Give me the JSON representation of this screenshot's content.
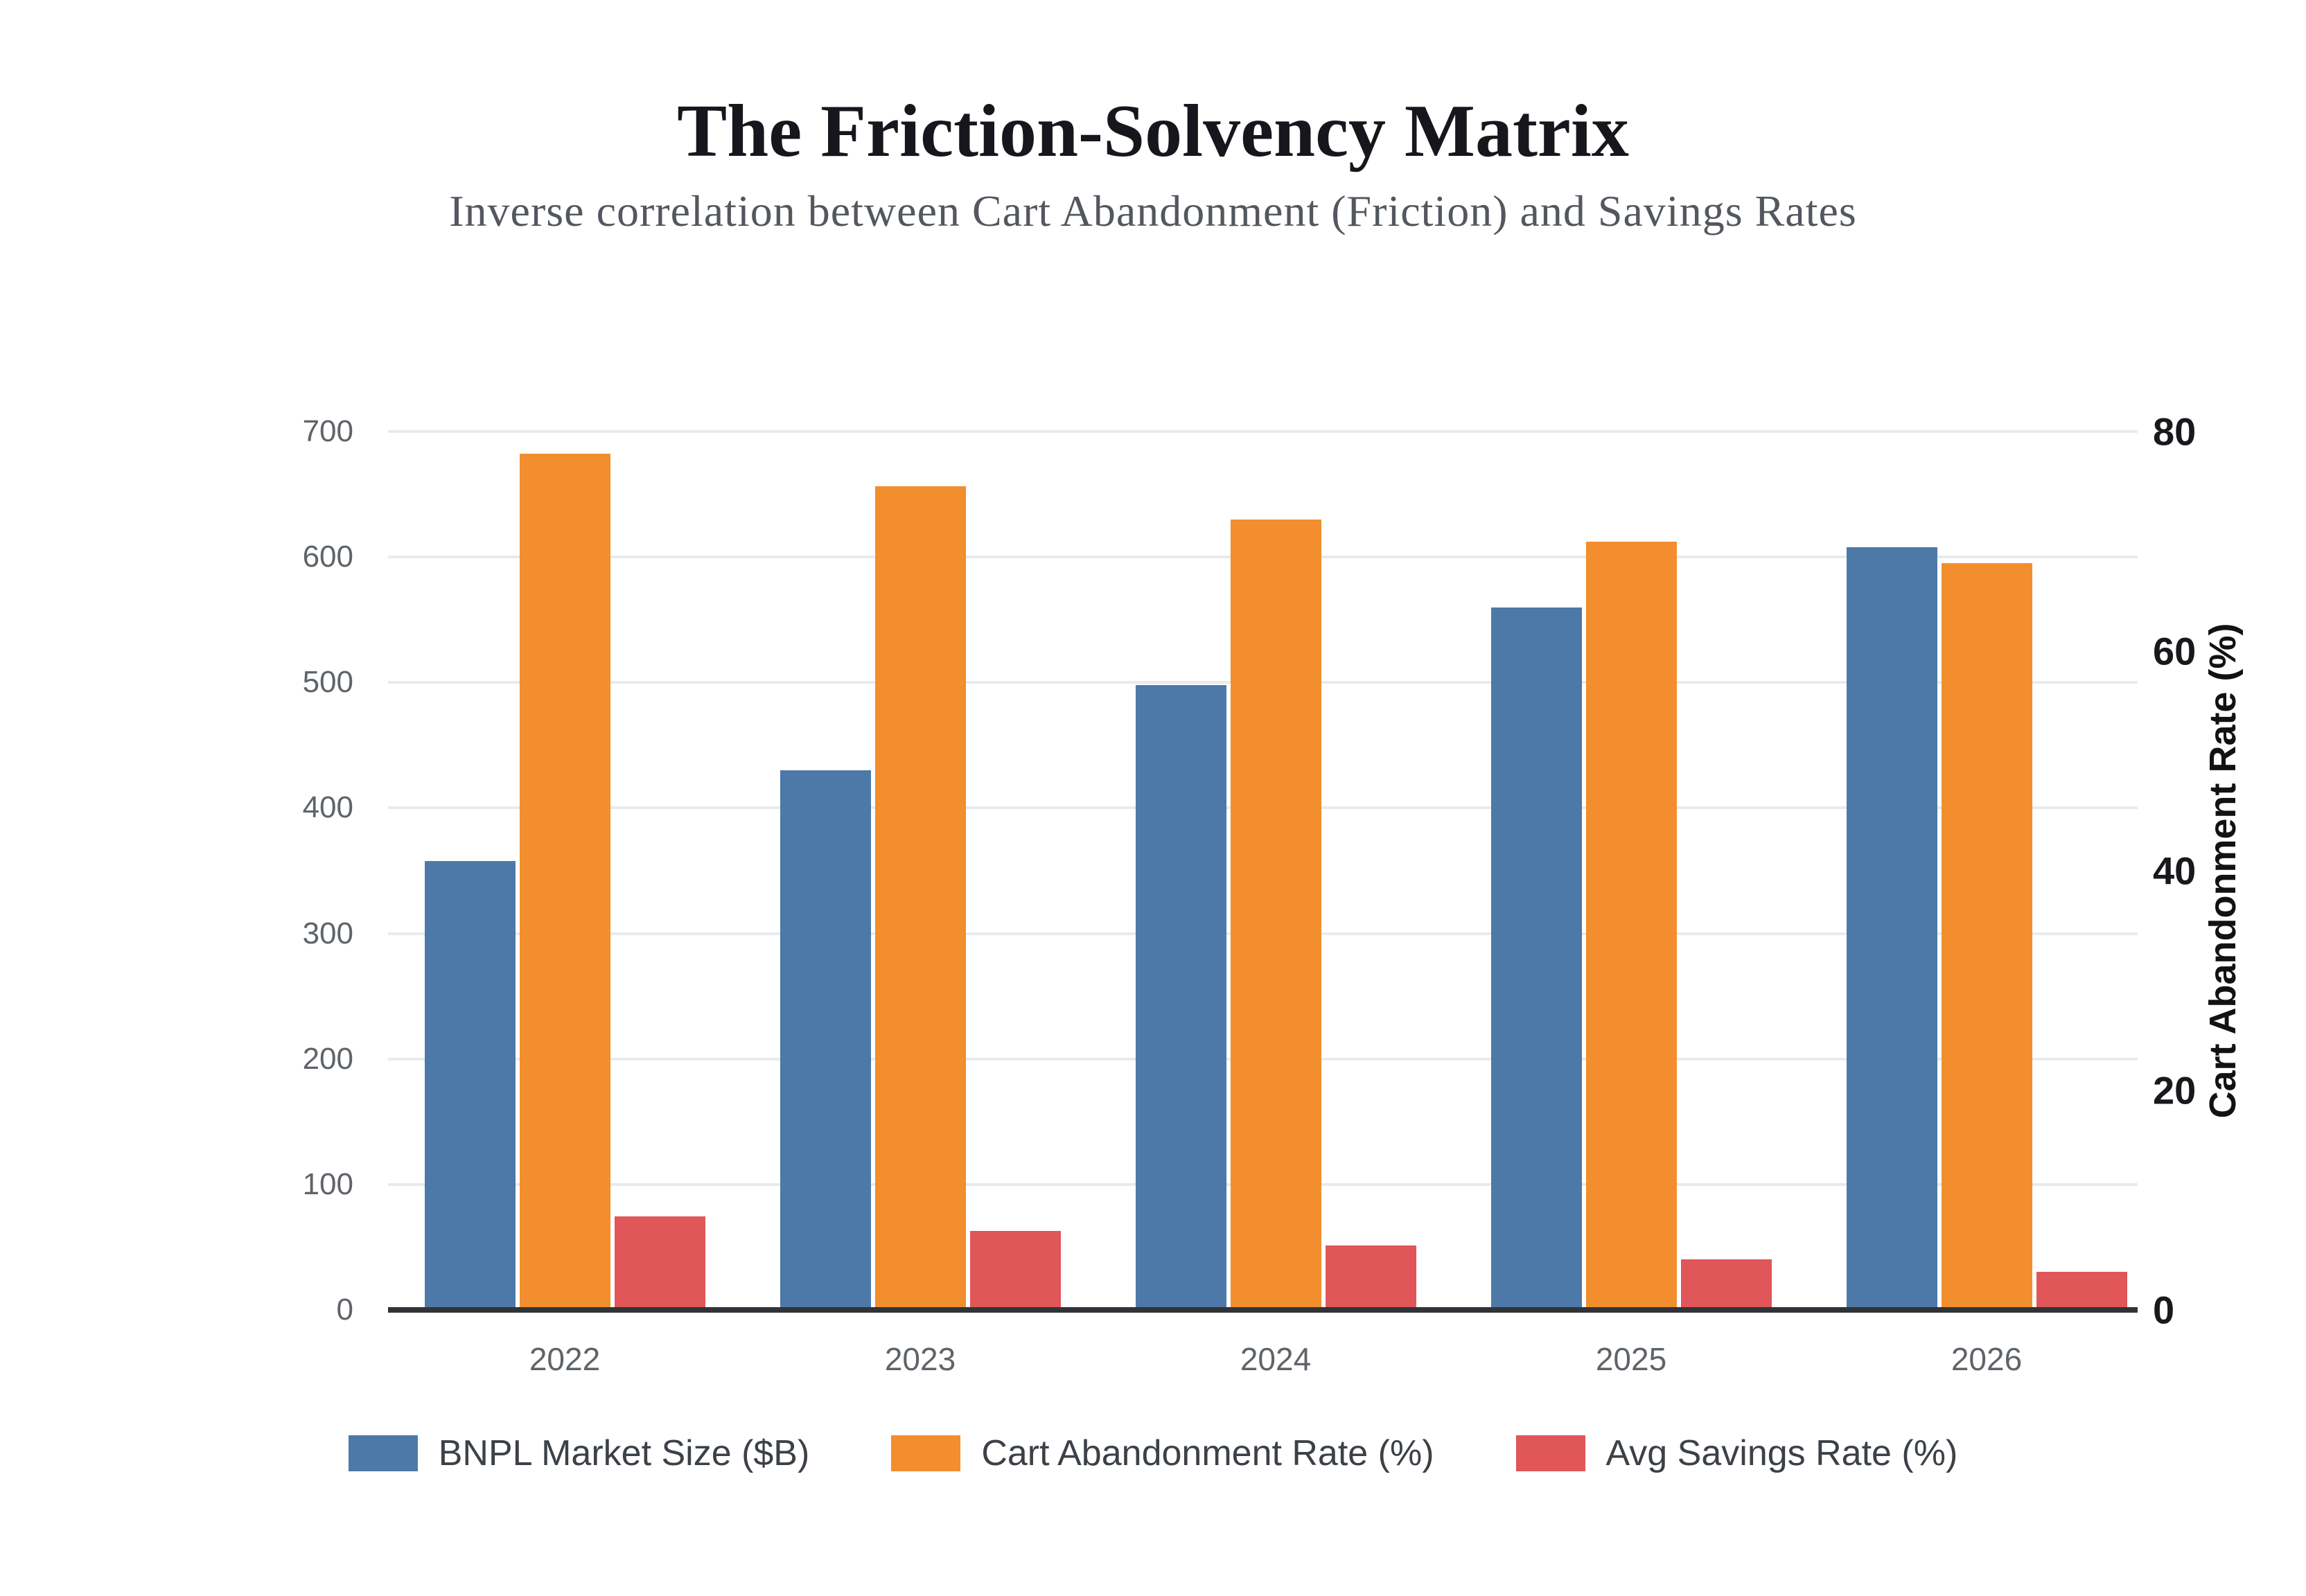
{
  "header": {
    "title": "The Friction-Solvency Matrix",
    "subtitle": "Inverse correlation between Cart Abandonment (Friction) and Savings Rates"
  },
  "chart_data": {
    "type": "bar",
    "categories": [
      "2022",
      "2023",
      "2024",
      "2025",
      "2026"
    ],
    "series": [
      {
        "name": "BNPL Market Size ($B)",
        "axis": "left",
        "color": "#4d79a8",
        "values": [
          358,
          430,
          498,
          560,
          608
        ]
      },
      {
        "name": "Cart Abandonment Rate (%)",
        "axis": "right",
        "color": "#f28e2d",
        "values": [
          78,
          75,
          72,
          70,
          68
        ]
      },
      {
        "name": "Avg Savings Rate (%)",
        "axis": "right",
        "color": "#e05659",
        "values": [
          8.5,
          7.2,
          5.9,
          4.6,
          3.5
        ]
      }
    ],
    "left_axis": {
      "min": 0,
      "max": 700,
      "ticks": [
        0,
        100,
        200,
        300,
        400,
        500,
        600,
        700
      ]
    },
    "right_axis": {
      "min": 0,
      "max": 80,
      "ticks": [
        0,
        20,
        40,
        60,
        80
      ],
      "label": "Cart Abandonment Rate (%)"
    },
    "grid": true,
    "legend_position": "bottom",
    "title": "The Friction-Solvency Matrix",
    "xlabel": "",
    "ylabel": "Cart Abandonment Rate (%)"
  }
}
